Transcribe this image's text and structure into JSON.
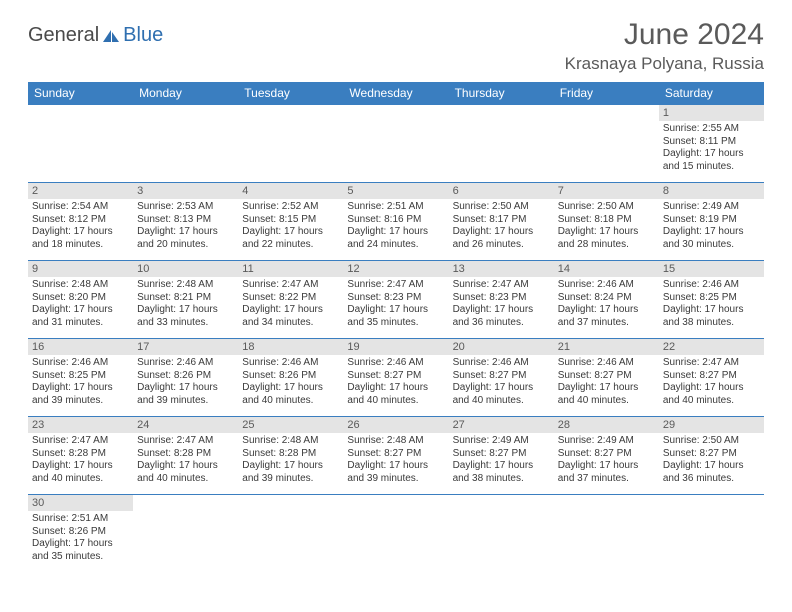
{
  "logo": {
    "general": "General",
    "blue": "Blue"
  },
  "header": {
    "month_title": "June 2024",
    "location": "Krasnaya Polyana, Russia"
  },
  "calendar": {
    "header_bg": "#3a7ec0",
    "header_fg": "#ffffff",
    "daynum_bg": "#e4e4e4",
    "border_color": "#3a7ec0",
    "weekdays": [
      "Sunday",
      "Monday",
      "Tuesday",
      "Wednesday",
      "Thursday",
      "Friday",
      "Saturday"
    ],
    "weeks": [
      [
        null,
        null,
        null,
        null,
        null,
        null,
        {
          "n": "1",
          "sr": "Sunrise: 2:55 AM",
          "ss": "Sunset: 8:11 PM",
          "dl1": "Daylight: 17 hours",
          "dl2": "and 15 minutes."
        }
      ],
      [
        {
          "n": "2",
          "sr": "Sunrise: 2:54 AM",
          "ss": "Sunset: 8:12 PM",
          "dl1": "Daylight: 17 hours",
          "dl2": "and 18 minutes."
        },
        {
          "n": "3",
          "sr": "Sunrise: 2:53 AM",
          "ss": "Sunset: 8:13 PM",
          "dl1": "Daylight: 17 hours",
          "dl2": "and 20 minutes."
        },
        {
          "n": "4",
          "sr": "Sunrise: 2:52 AM",
          "ss": "Sunset: 8:15 PM",
          "dl1": "Daylight: 17 hours",
          "dl2": "and 22 minutes."
        },
        {
          "n": "5",
          "sr": "Sunrise: 2:51 AM",
          "ss": "Sunset: 8:16 PM",
          "dl1": "Daylight: 17 hours",
          "dl2": "and 24 minutes."
        },
        {
          "n": "6",
          "sr": "Sunrise: 2:50 AM",
          "ss": "Sunset: 8:17 PM",
          "dl1": "Daylight: 17 hours",
          "dl2": "and 26 minutes."
        },
        {
          "n": "7",
          "sr": "Sunrise: 2:50 AM",
          "ss": "Sunset: 8:18 PM",
          "dl1": "Daylight: 17 hours",
          "dl2": "and 28 minutes."
        },
        {
          "n": "8",
          "sr": "Sunrise: 2:49 AM",
          "ss": "Sunset: 8:19 PM",
          "dl1": "Daylight: 17 hours",
          "dl2": "and 30 minutes."
        }
      ],
      [
        {
          "n": "9",
          "sr": "Sunrise: 2:48 AM",
          "ss": "Sunset: 8:20 PM",
          "dl1": "Daylight: 17 hours",
          "dl2": "and 31 minutes."
        },
        {
          "n": "10",
          "sr": "Sunrise: 2:48 AM",
          "ss": "Sunset: 8:21 PM",
          "dl1": "Daylight: 17 hours",
          "dl2": "and 33 minutes."
        },
        {
          "n": "11",
          "sr": "Sunrise: 2:47 AM",
          "ss": "Sunset: 8:22 PM",
          "dl1": "Daylight: 17 hours",
          "dl2": "and 34 minutes."
        },
        {
          "n": "12",
          "sr": "Sunrise: 2:47 AM",
          "ss": "Sunset: 8:23 PM",
          "dl1": "Daylight: 17 hours",
          "dl2": "and 35 minutes."
        },
        {
          "n": "13",
          "sr": "Sunrise: 2:47 AM",
          "ss": "Sunset: 8:23 PM",
          "dl1": "Daylight: 17 hours",
          "dl2": "and 36 minutes."
        },
        {
          "n": "14",
          "sr": "Sunrise: 2:46 AM",
          "ss": "Sunset: 8:24 PM",
          "dl1": "Daylight: 17 hours",
          "dl2": "and 37 minutes."
        },
        {
          "n": "15",
          "sr": "Sunrise: 2:46 AM",
          "ss": "Sunset: 8:25 PM",
          "dl1": "Daylight: 17 hours",
          "dl2": "and 38 minutes."
        }
      ],
      [
        {
          "n": "16",
          "sr": "Sunrise: 2:46 AM",
          "ss": "Sunset: 8:25 PM",
          "dl1": "Daylight: 17 hours",
          "dl2": "and 39 minutes."
        },
        {
          "n": "17",
          "sr": "Sunrise: 2:46 AM",
          "ss": "Sunset: 8:26 PM",
          "dl1": "Daylight: 17 hours",
          "dl2": "and 39 minutes."
        },
        {
          "n": "18",
          "sr": "Sunrise: 2:46 AM",
          "ss": "Sunset: 8:26 PM",
          "dl1": "Daylight: 17 hours",
          "dl2": "and 40 minutes."
        },
        {
          "n": "19",
          "sr": "Sunrise: 2:46 AM",
          "ss": "Sunset: 8:27 PM",
          "dl1": "Daylight: 17 hours",
          "dl2": "and 40 minutes."
        },
        {
          "n": "20",
          "sr": "Sunrise: 2:46 AM",
          "ss": "Sunset: 8:27 PM",
          "dl1": "Daylight: 17 hours",
          "dl2": "and 40 minutes."
        },
        {
          "n": "21",
          "sr": "Sunrise: 2:46 AM",
          "ss": "Sunset: 8:27 PM",
          "dl1": "Daylight: 17 hours",
          "dl2": "and 40 minutes."
        },
        {
          "n": "22",
          "sr": "Sunrise: 2:47 AM",
          "ss": "Sunset: 8:27 PM",
          "dl1": "Daylight: 17 hours",
          "dl2": "and 40 minutes."
        }
      ],
      [
        {
          "n": "23",
          "sr": "Sunrise: 2:47 AM",
          "ss": "Sunset: 8:28 PM",
          "dl1": "Daylight: 17 hours",
          "dl2": "and 40 minutes."
        },
        {
          "n": "24",
          "sr": "Sunrise: 2:47 AM",
          "ss": "Sunset: 8:28 PM",
          "dl1": "Daylight: 17 hours",
          "dl2": "and 40 minutes."
        },
        {
          "n": "25",
          "sr": "Sunrise: 2:48 AM",
          "ss": "Sunset: 8:28 PM",
          "dl1": "Daylight: 17 hours",
          "dl2": "and 39 minutes."
        },
        {
          "n": "26",
          "sr": "Sunrise: 2:48 AM",
          "ss": "Sunset: 8:27 PM",
          "dl1": "Daylight: 17 hours",
          "dl2": "and 39 minutes."
        },
        {
          "n": "27",
          "sr": "Sunrise: 2:49 AM",
          "ss": "Sunset: 8:27 PM",
          "dl1": "Daylight: 17 hours",
          "dl2": "and 38 minutes."
        },
        {
          "n": "28",
          "sr": "Sunrise: 2:49 AM",
          "ss": "Sunset: 8:27 PM",
          "dl1": "Daylight: 17 hours",
          "dl2": "and 37 minutes."
        },
        {
          "n": "29",
          "sr": "Sunrise: 2:50 AM",
          "ss": "Sunset: 8:27 PM",
          "dl1": "Daylight: 17 hours",
          "dl2": "and 36 minutes."
        }
      ],
      [
        {
          "n": "30",
          "sr": "Sunrise: 2:51 AM",
          "ss": "Sunset: 8:26 PM",
          "dl1": "Daylight: 17 hours",
          "dl2": "and 35 minutes."
        },
        null,
        null,
        null,
        null,
        null,
        null
      ]
    ]
  }
}
